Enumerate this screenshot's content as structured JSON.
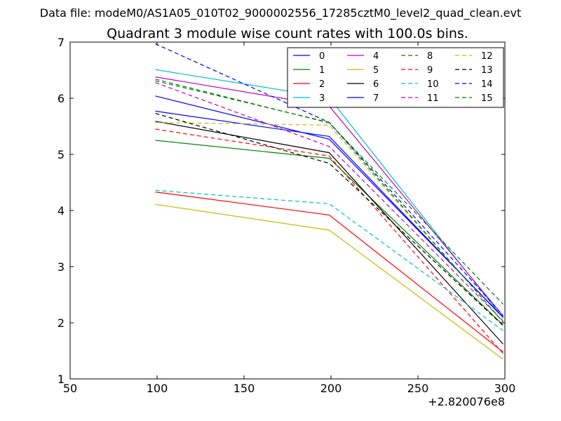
{
  "chart_data": {
    "type": "line",
    "suptitle": "Data file: modeM0/AS1A05_010T02_9000002556_17285cztM0_level2_quad_clean.evt",
    "title": "Quadrant 3 module wise count rates with 100.0s bins.",
    "xlabel": "",
    "ylabel": "",
    "offset_text": "+2.820076e8",
    "xlim": [
      50,
      300
    ],
    "ylim": [
      1,
      7
    ],
    "xticks": [
      50,
      100,
      150,
      200,
      250,
      300
    ],
    "yticks": [
      1,
      2,
      3,
      4,
      5,
      6,
      7
    ],
    "grid": false,
    "legend": {
      "placement": "top-right",
      "columns": 4
    },
    "x": [
      99,
      199,
      299
    ],
    "series": [
      {
        "name": "0",
        "color": "#0000ff",
        "dash": "solid",
        "values": [
          5.77,
          5.32,
          2.09
        ]
      },
      {
        "name": "1",
        "color": "#008000",
        "dash": "solid",
        "values": [
          5.25,
          4.93,
          1.96
        ]
      },
      {
        "name": "2",
        "color": "#ff0000",
        "dash": "solid",
        "values": [
          4.33,
          3.92,
          1.48
        ]
      },
      {
        "name": "3",
        "color": "#00bfbf",
        "dash": "solid",
        "values": [
          6.51,
          6.01,
          2.08
        ]
      },
      {
        "name": "4",
        "color": "#bf00bf",
        "dash": "solid",
        "values": [
          6.38,
          5.86,
          2.12
        ]
      },
      {
        "name": "5",
        "color": "#bfbf00",
        "dash": "solid",
        "values": [
          4.11,
          3.65,
          1.35
        ]
      },
      {
        "name": "6",
        "color": "#000000",
        "dash": "solid",
        "values": [
          5.59,
          5.03,
          1.62
        ]
      },
      {
        "name": "7",
        "color": "#0000ff",
        "dash": "solid",
        "values": [
          6.04,
          5.27,
          2.1
        ]
      },
      {
        "name": "8",
        "color": "#008000",
        "dash": "dashed",
        "values": [
          6.34,
          5.56,
          2.33
        ]
      },
      {
        "name": "9",
        "color": "#ff0000",
        "dash": "dashed",
        "values": [
          5.45,
          4.97,
          1.45
        ]
      },
      {
        "name": "10",
        "color": "#00bfbf",
        "dash": "dashed",
        "values": [
          4.36,
          4.12,
          1.86
        ]
      },
      {
        "name": "11",
        "color": "#bf00bf",
        "dash": "dashed",
        "values": [
          6.28,
          5.14,
          2.03
        ]
      },
      {
        "name": "12",
        "color": "#bfbf00",
        "dash": "dashed",
        "values": [
          5.57,
          5.52,
          2.02
        ]
      },
      {
        "name": "13",
        "color": "#000000",
        "dash": "dashed",
        "values": [
          5.73,
          4.84,
          1.95
        ]
      },
      {
        "name": "14",
        "color": "#0000ff",
        "dash": "dashed",
        "values": [
          6.97,
          5.57,
          2.13
        ]
      },
      {
        "name": "15",
        "color": "#008000",
        "dash": "dashed",
        "values": [
          6.31,
          5.57,
          2.01
        ]
      }
    ]
  }
}
